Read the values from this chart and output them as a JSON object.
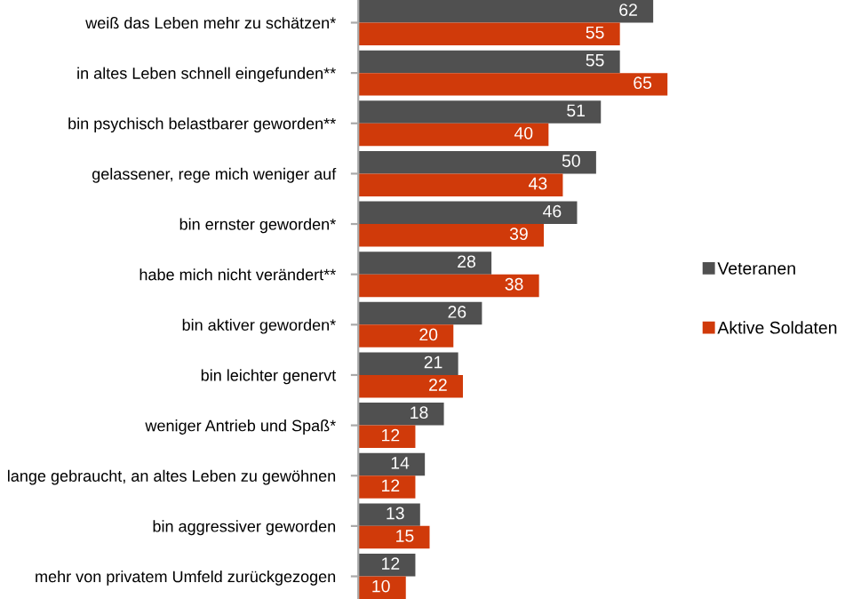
{
  "chart_data": {
    "type": "bar",
    "orientation": "horizontal",
    "data_labels": true,
    "legend": "right",
    "grid": false,
    "categories": [
      "weiß das Leben mehr zu schätzen*",
      "in altes Leben schnell eingefunden**",
      "bin psychisch belastbarer geworden**",
      "gelassener, rege mich weniger auf",
      "bin ernster geworden*",
      "habe mich nicht verändert**",
      "bin aktiver geworden*",
      "bin leichter genervt",
      "weniger Antrieb und Spaß*",
      "lange gebraucht, an altes Leben zu gewöhnen",
      "bin aggressiver geworden",
      "mehr von privatem Umfeld zurückgezogen"
    ],
    "series": [
      {
        "name": "Veteranen",
        "color": "#505050",
        "values": [
          62,
          55,
          51,
          50,
          46,
          28,
          26,
          21,
          18,
          14,
          13,
          12
        ]
      },
      {
        "name": "Aktive Soldaten",
        "color": "#d03a0a",
        "values": [
          55,
          65,
          40,
          43,
          39,
          38,
          20,
          22,
          12,
          12,
          15,
          10
        ]
      }
    ]
  }
}
